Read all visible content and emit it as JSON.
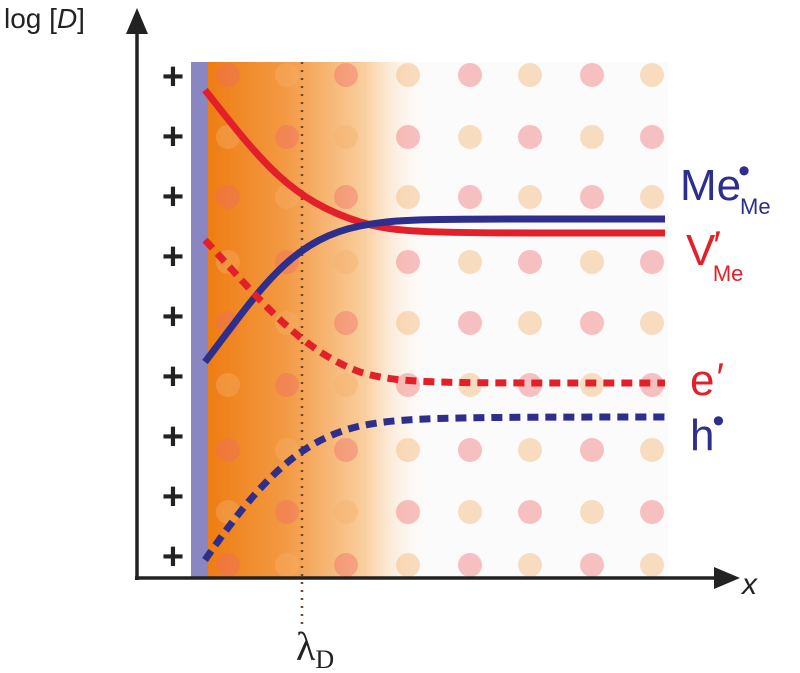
{
  "axes": {
    "y_label": {
      "before": "log [",
      "italic": "D",
      "after": "]"
    },
    "x_label": "x"
  },
  "marker": {
    "symbol": "λ",
    "subscript": "D"
  },
  "charges": [
    "+",
    "+",
    "+",
    "+",
    "+",
    "+",
    "+",
    "+",
    "+"
  ],
  "species": [
    {
      "main": "Me",
      "superscript": "•",
      "subscript": "Me"
    },
    {
      "main": "V",
      "superscript": "′",
      "subscript": "Me"
    },
    {
      "main": "e",
      "superscript": "′"
    },
    {
      "main": "h",
      "superscript": "•"
    }
  ]
}
